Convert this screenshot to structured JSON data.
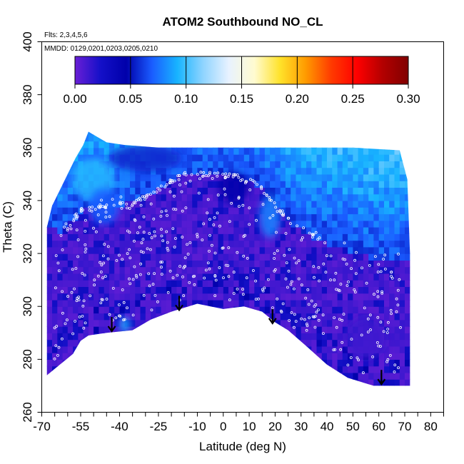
{
  "chart_data": {
    "type": "heatmap",
    "title": "ATOM2 Southbound NO_CL",
    "subtitle_flights": "Flts: 2,3,4,5,6",
    "subtitle_dates": "MMDD: 0129,0201,0203,0205,0210",
    "xlabel": "Latitude (deg N)",
    "ylabel": "Theta (C)",
    "xlim": [
      -70,
      85
    ],
    "ylim": [
      260,
      400
    ],
    "x_ticks": [
      -70,
      -55,
      -40,
      -25,
      -10,
      0,
      10,
      20,
      30,
      40,
      50,
      60,
      70,
      80
    ],
    "x_minor_ticks": [
      -70,
      -65,
      -60,
      -55,
      -50,
      -45,
      -40,
      -35,
      -30,
      -25,
      -20,
      -15,
      -10,
      -5,
      0,
      5,
      10,
      15,
      20,
      25,
      30,
      35,
      40,
      45,
      50,
      55,
      60,
      65,
      70,
      75,
      80,
      85
    ],
    "y_ticks": [
      260,
      280,
      300,
      320,
      340,
      360,
      380,
      400
    ],
    "colorbar": {
      "min": 0.0,
      "max": 0.3,
      "ticks": [
        0.0,
        0.05,
        0.1,
        0.15,
        0.2,
        0.25,
        0.3
      ],
      "tick_labels": [
        "0.00",
        "0.05",
        "0.10",
        "0.15",
        "0.20",
        "0.25",
        "0.30"
      ],
      "stops": [
        "#6a1fd6",
        "#1410c8",
        "#0000aa",
        "#1a5cff",
        "#18b4ff",
        "#8fd4ff",
        "#e8f2ff",
        "#fffbd0",
        "#ffe22a",
        "#ff9a00",
        "#ff3a00",
        "#ff0000",
        "#b30000",
        "#800000"
      ]
    },
    "bottom_boundary": [
      {
        "lat": -68,
        "theta": 274
      },
      {
        "lat": -63,
        "theta": 278
      },
      {
        "lat": -58,
        "theta": 282
      },
      {
        "lat": -55,
        "theta": 287
      },
      {
        "lat": -52,
        "theta": 289
      },
      {
        "lat": -45,
        "theta": 290
      },
      {
        "lat": -35,
        "theta": 291
      },
      {
        "lat": -28,
        "theta": 295
      },
      {
        "lat": -20,
        "theta": 298
      },
      {
        "lat": -10,
        "theta": 301
      },
      {
        "lat": 0,
        "theta": 299
      },
      {
        "lat": 8,
        "theta": 300
      },
      {
        "lat": 15,
        "theta": 298
      },
      {
        "lat": 20,
        "theta": 294
      },
      {
        "lat": 25,
        "theta": 291
      },
      {
        "lat": 32,
        "theta": 285
      },
      {
        "lat": 40,
        "theta": 278
      },
      {
        "lat": 48,
        "theta": 273
      },
      {
        "lat": 58,
        "theta": 270
      },
      {
        "lat": 72,
        "theta": 270
      }
    ],
    "top_boundary": [
      {
        "lat": -68,
        "theta": 330
      },
      {
        "lat": -66,
        "theta": 338
      },
      {
        "lat": -63,
        "theta": 344
      },
      {
        "lat": -60,
        "theta": 350
      },
      {
        "lat": -57,
        "theta": 356
      },
      {
        "lat": -54,
        "theta": 361
      },
      {
        "lat": -52,
        "theta": 366
      },
      {
        "lat": -45,
        "theta": 362
      },
      {
        "lat": -38,
        "theta": 361
      },
      {
        "lat": -25,
        "theta": 360
      },
      {
        "lat": 0,
        "theta": 360
      },
      {
        "lat": 30,
        "theta": 360
      },
      {
        "lat": 50,
        "theta": 360
      },
      {
        "lat": 68,
        "theta": 359
      },
      {
        "lat": 71,
        "theta": 348
      },
      {
        "lat": 72,
        "theta": 320
      }
    ],
    "cloud_boundary": [
      {
        "lat": -68,
        "theta": 330
      },
      {
        "lat": -62,
        "theta": 328
      },
      {
        "lat": -55,
        "theta": 336
      },
      {
        "lat": -45,
        "theta": 338
      },
      {
        "lat": -35,
        "theta": 339
      },
      {
        "lat": -28,
        "theta": 342
      },
      {
        "lat": -22,
        "theta": 346
      },
      {
        "lat": -15,
        "theta": 350
      },
      {
        "lat": -5,
        "theta": 350
      },
      {
        "lat": 5,
        "theta": 349
      },
      {
        "lat": 12,
        "theta": 347
      },
      {
        "lat": 18,
        "theta": 341
      },
      {
        "lat": 24,
        "theta": 334
      },
      {
        "lat": 30,
        "theta": 328
      },
      {
        "lat": 38,
        "theta": 325
      },
      {
        "lat": 45,
        "theta": 322
      },
      {
        "lat": 55,
        "theta": 319
      },
      {
        "lat": 62,
        "theta": 317
      },
      {
        "lat": 72,
        "theta": 318
      }
    ],
    "enhanced_regions": [
      {
        "lat": -50,
        "theta": 348,
        "rlat": 8,
        "rtheta": 8,
        "value": 0.095
      },
      {
        "lat": -46,
        "theta": 338,
        "rlat": 6,
        "rtheta": 7,
        "value": 0.07
      },
      {
        "lat": 18,
        "theta": 334,
        "rlat": 4,
        "rtheta": 8,
        "value": 0.08
      },
      {
        "lat": -30,
        "theta": 356,
        "rlat": 14,
        "rtheta": 5,
        "value": 0.055
      },
      {
        "lat": -38,
        "theta": 293,
        "rlat": 2,
        "rtheta": 3,
        "value": 0.09
      },
      {
        "lat": 4,
        "theta": 345,
        "rlat": 6,
        "rtheta": 6,
        "value": 0.045
      },
      {
        "lat": 55,
        "theta": 288,
        "rlat": 8,
        "rtheta": 8,
        "value": 0.012
      }
    ],
    "arrows": [
      {
        "lat": -43,
        "theta": 296
      },
      {
        "lat": -17,
        "theta": 304
      },
      {
        "lat": 19,
        "theta": 299
      },
      {
        "lat": 61,
        "theta": 276
      }
    ]
  }
}
